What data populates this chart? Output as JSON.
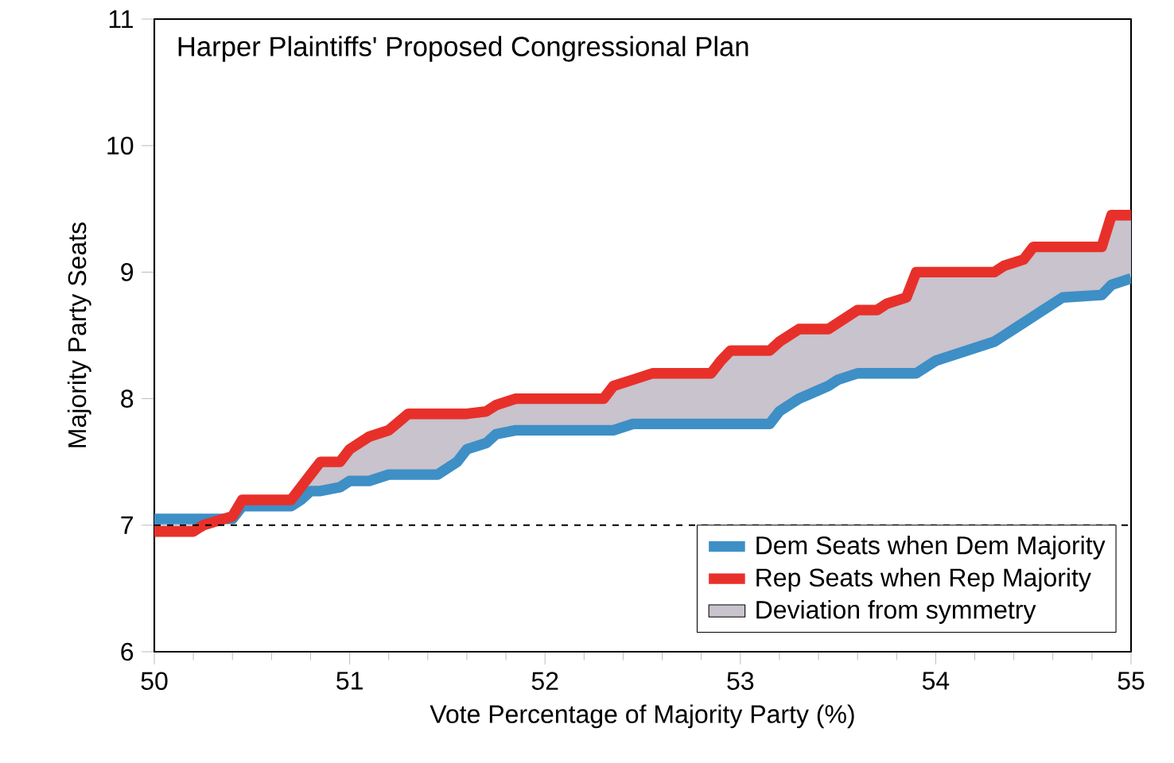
{
  "chart_data": {
    "type": "line",
    "title": "Harper Plaintiffs' Proposed Congressional Plan",
    "xlabel": "Vote Percentage of Majority Party (%)",
    "ylabel": "Majority Party Seats",
    "xlim": [
      50,
      55
    ],
    "ylim": [
      6,
      11
    ],
    "xticks": [
      50,
      51,
      52,
      53,
      54,
      55
    ],
    "yticks": [
      6,
      7,
      8,
      9,
      10,
      11
    ],
    "legend": "bottom right",
    "marker": "none",
    "line_style": "solid",
    "ref_lines": [
      {
        "axis": "y",
        "value": 7,
        "color": "#000000",
        "line_style": "dashed"
      }
    ],
    "series": [
      {
        "name": "Dem Seats when Dem Majority",
        "color": "#3d8fc6",
        "x": [
          50,
          50.2,
          50.25,
          50.4,
          50.45,
          50.7,
          50.75,
          50.8,
          50.85,
          50.95,
          51.0,
          51.1,
          51.2,
          51.3,
          51.45,
          51.55,
          51.6,
          51.7,
          51.75,
          51.85,
          52.3,
          52.35,
          52.45,
          52.55,
          52.85,
          52.9,
          52.95,
          53.15,
          53.2,
          53.3,
          53.45,
          53.5,
          53.6,
          53.7,
          53.75,
          53.85,
          53.9,
          54.0,
          54.1,
          54.2,
          54.3,
          54.35,
          54.45,
          54.5,
          54.55,
          54.65,
          54.85,
          54.9,
          55
        ],
        "values": [
          7.05,
          7.05,
          7.05,
          7.05,
          7.15,
          7.15,
          7.2,
          7.27,
          7.27,
          7.3,
          7.35,
          7.35,
          7.4,
          7.4,
          7.4,
          7.5,
          7.6,
          7.65,
          7.72,
          7.75,
          7.75,
          7.75,
          7.8,
          7.8,
          7.8,
          7.8,
          7.8,
          7.8,
          7.9,
          8.0,
          8.1,
          8.15,
          8.2,
          8.2,
          8.2,
          8.2,
          8.2,
          8.3,
          8.35,
          8.4,
          8.45,
          8.5,
          8.6,
          8.65,
          8.7,
          8.8,
          8.82,
          8.9,
          8.95
        ]
      },
      {
        "name": "Rep Seats when Rep Majority",
        "color": "#e8302a",
        "x": [
          50,
          50.2,
          50.25,
          50.4,
          50.45,
          50.7,
          50.75,
          50.8,
          50.85,
          50.95,
          51.0,
          51.1,
          51.2,
          51.3,
          51.45,
          51.55,
          51.6,
          51.7,
          51.75,
          51.85,
          52.3,
          52.35,
          52.45,
          52.55,
          52.85,
          52.9,
          52.95,
          53.15,
          53.2,
          53.3,
          53.45,
          53.5,
          53.6,
          53.7,
          53.75,
          53.85,
          53.9,
          54.0,
          54.1,
          54.2,
          54.3,
          54.35,
          54.45,
          54.5,
          54.55,
          54.65,
          54.85,
          54.9,
          55
        ],
        "values": [
          6.95,
          6.95,
          7.0,
          7.07,
          7.2,
          7.2,
          7.3,
          7.4,
          7.5,
          7.5,
          7.6,
          7.7,
          7.75,
          7.88,
          7.88,
          7.88,
          7.88,
          7.9,
          7.95,
          8.0,
          8.0,
          8.1,
          8.15,
          8.2,
          8.2,
          8.3,
          8.38,
          8.38,
          8.45,
          8.55,
          8.55,
          8.6,
          8.7,
          8.7,
          8.75,
          8.8,
          9.0,
          9.0,
          9.0,
          9.0,
          9.0,
          9.05,
          9.1,
          9.2,
          9.2,
          9.2,
          9.2,
          9.45,
          9.45
        ]
      },
      {
        "name": "Deviation from symmetry",
        "type": "area",
        "color": "#c8c3cd"
      }
    ]
  }
}
